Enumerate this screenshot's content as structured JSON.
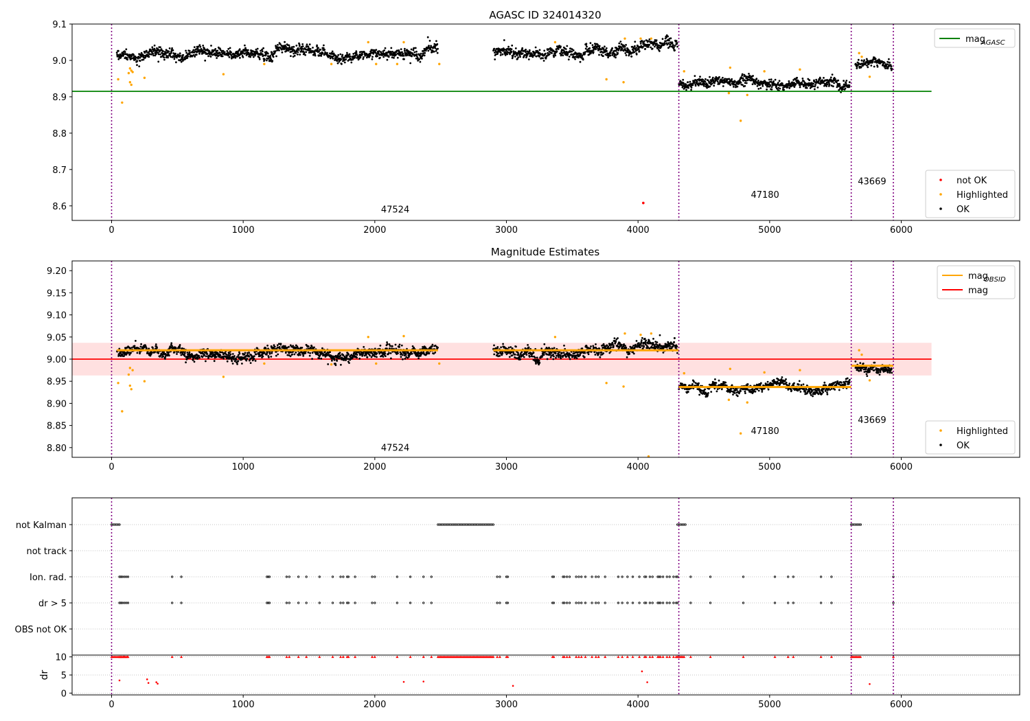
{
  "chart_data": [
    {
      "type": "scatter",
      "title": "AGASC ID 324014320",
      "ylim": [
        8.56,
        9.1
      ],
      "xlim": [
        -300,
        6900
      ],
      "xticks": [
        0,
        1000,
        2000,
        3000,
        4000,
        5000,
        6000
      ],
      "yticks": [
        8.6,
        8.7,
        8.8,
        8.9,
        9.0,
        9.1
      ],
      "grid": false,
      "segments": [
        {
          "x0": 40,
          "x1": 2480,
          "level": 9.02,
          "noise": 0.012
        },
        {
          "x0": 2900,
          "x1": 3600,
          "level": 9.022,
          "noise": 0.012
        },
        {
          "x0": 3600,
          "x1": 4300,
          "level": 9.032,
          "noise": 0.013
        },
        {
          "x0": 4310,
          "x1": 5610,
          "level": 8.937,
          "noise": 0.011
        },
        {
          "x0": 5650,
          "x1": 5930,
          "level": 8.985,
          "noise": 0.01
        }
      ],
      "highlighted_points": [
        [
          50,
          8.948
        ],
        [
          80,
          8.884
        ],
        [
          130,
          8.965
        ],
        [
          140,
          8.978
        ],
        [
          150,
          8.972
        ],
        [
          140,
          8.94
        ],
        [
          150,
          8.933
        ],
        [
          160,
          8.968
        ],
        [
          250,
          8.952
        ],
        [
          850,
          8.962
        ],
        [
          1160,
          8.99
        ],
        [
          1670,
          8.99
        ],
        [
          1950,
          9.05
        ],
        [
          2010,
          8.99
        ],
        [
          2170,
          8.99
        ],
        [
          2220,
          9.05
        ],
        [
          2490,
          8.99
        ],
        [
          3370,
          9.05
        ],
        [
          3760,
          8.948
        ],
        [
          3890,
          8.94
        ],
        [
          3900,
          9.06
        ],
        [
          4020,
          9.06
        ],
        [
          4100,
          9.06
        ],
        [
          4350,
          8.97
        ],
        [
          4700,
          8.98
        ],
        [
          4690,
          8.91
        ],
        [
          4780,
          8.834
        ],
        [
          4830,
          8.905
        ],
        [
          4960,
          8.97
        ],
        [
          5230,
          8.975
        ],
        [
          5680,
          9.02
        ],
        [
          5700,
          9.01
        ],
        [
          5760,
          8.955
        ]
      ],
      "not_ok_points": [
        [
          4040,
          8.608
        ]
      ],
      "hline": {
        "name": "mag_AGASC",
        "value": 8.915,
        "x0": -300,
        "x1": 6230,
        "color": "#008000"
      },
      "vlines": [
        0,
        4310,
        5620,
        5940
      ],
      "annotations": [
        {
          "text": "47524",
          "x": 2155,
          "y": 8.582
        },
        {
          "text": "47180",
          "x": 4965,
          "y": 8.622
        },
        {
          "text": "43669",
          "x": 5778,
          "y": 8.659
        }
      ],
      "legend_top": {
        "position": "top-right",
        "entries": [
          {
            "label": "mag",
            "sub": "AGASC",
            "color": "#008000"
          }
        ]
      },
      "legend_bottom": {
        "position": "bottom-right",
        "entries": [
          {
            "label": "not OK",
            "color": "#ff0000"
          },
          {
            "label": "Highlighted",
            "color": "#ffa500"
          },
          {
            "label": "OK",
            "color": "#000000"
          }
        ]
      }
    },
    {
      "type": "scatter",
      "title": "Magnitude Estimates",
      "ylim": [
        8.778,
        9.222
      ],
      "xlim": [
        -300,
        6900
      ],
      "xticks": [
        0,
        1000,
        2000,
        3000,
        4000,
        5000,
        6000
      ],
      "yticks": [
        8.8,
        8.85,
        8.9,
        8.95,
        9.0,
        9.05,
        9.1,
        9.15,
        9.2
      ],
      "grid": false,
      "segments": [
        {
          "x0": 40,
          "x1": 2480,
          "level": 9.018,
          "noise": 0.01
        },
        {
          "x0": 2900,
          "x1": 3600,
          "level": 9.02,
          "noise": 0.01
        },
        {
          "x0": 3600,
          "x1": 4300,
          "level": 9.028,
          "noise": 0.011
        },
        {
          "x0": 4310,
          "x1": 5610,
          "level": 8.935,
          "noise": 0.009
        },
        {
          "x0": 5650,
          "x1": 5930,
          "level": 8.983,
          "noise": 0.008
        }
      ],
      "highlighted_points": [
        [
          50,
          8.946
        ],
        [
          80,
          8.882
        ],
        [
          130,
          8.965
        ],
        [
          140,
          8.98
        ],
        [
          140,
          8.94
        ],
        [
          150,
          8.932
        ],
        [
          160,
          8.975
        ],
        [
          250,
          8.95
        ],
        [
          850,
          8.96
        ],
        [
          1160,
          8.99
        ],
        [
          1670,
          8.988
        ],
        [
          1950,
          9.05
        ],
        [
          2010,
          8.99
        ],
        [
          2220,
          9.052
        ],
        [
          2490,
          8.99
        ],
        [
          3370,
          9.05
        ],
        [
          3760,
          8.946
        ],
        [
          3890,
          8.938
        ],
        [
          3900,
          9.058
        ],
        [
          4020,
          9.055
        ],
        [
          4100,
          9.058
        ],
        [
          4350,
          8.968
        ],
        [
          4700,
          8.978
        ],
        [
          4690,
          8.908
        ],
        [
          4780,
          8.832
        ],
        [
          4830,
          8.902
        ],
        [
          4960,
          8.97
        ],
        [
          5230,
          8.975
        ],
        [
          5680,
          9.02
        ],
        [
          5700,
          9.01
        ],
        [
          5760,
          8.952
        ],
        [
          4080,
          8.78
        ]
      ],
      "obsid_mag": [
        {
          "x0": 40,
          "x1": 2480,
          "value": 9.02
        },
        {
          "x0": 2900,
          "x1": 4310,
          "value": 9.02
        },
        {
          "x0": 4310,
          "x1": 5620,
          "value": 8.937
        },
        {
          "x0": 5620,
          "x1": 5940,
          "value": 8.985
        }
      ],
      "mag_line": {
        "value": 9.0,
        "x0": -300,
        "x1": 6230,
        "band": [
          8.963,
          9.037
        ],
        "color": "#ff0000"
      },
      "vlines": [
        0,
        4310,
        5620,
        5940
      ],
      "annotations": [
        {
          "text": "47524",
          "x": 2155,
          "y": 8.793
        },
        {
          "text": "47180",
          "x": 4965,
          "y": 8.831
        },
        {
          "text": "43669",
          "x": 5778,
          "y": 8.856
        }
      ],
      "legend_top": {
        "position": "top-right",
        "entries": [
          {
            "label": "mag",
            "sub": "OBSID",
            "color": "#ffa500"
          },
          {
            "label": "mag",
            "sub": "",
            "color": "#ff0000"
          }
        ]
      },
      "legend_bottom": {
        "position": "bottom-right",
        "entries": [
          {
            "label": "Highlighted",
            "color": "#ffa500"
          },
          {
            "label": "OK",
            "color": "#000000"
          }
        ]
      }
    },
    {
      "type": "scatter",
      "title": "",
      "xlim": [
        -300,
        6900
      ],
      "xticks": [
        0,
        1000,
        2000,
        3000,
        4000,
        5000,
        6000
      ],
      "flag_rows": [
        "not Kalman",
        "not track",
        "Ion. rad.",
        "dr > 5",
        "OBS not OK"
      ],
      "grid": true,
      "flags": {
        "not Kalman": [
          [
            0,
            60
          ],
          [
            2480,
            2900
          ],
          [
            4300,
            4360
          ],
          [
            5620,
            5700
          ]
        ],
        "not track": [],
        "Ion. rad.": [
          60,
          70,
          80,
          95,
          110,
          125,
          460,
          530,
          1180,
          1190,
          1200,
          1330,
          1350,
          1420,
          1480,
          1580,
          1680,
          1740,
          1760,
          1790,
          1800,
          1850,
          1980,
          2000,
          2170,
          2270,
          2370,
          2430,
          2930,
          2950,
          3000,
          3010,
          3350,
          3360,
          3430,
          3440,
          3460,
          3480,
          3530,
          3550,
          3570,
          3600,
          3650,
          3680,
          3700,
          3750,
          3850,
          3880,
          3920,
          3960,
          4010,
          4050,
          4060,
          4090,
          4110,
          4150,
          4160,
          4170,
          4190,
          4220,
          4240,
          4270,
          4290,
          4300,
          4400,
          4550,
          4800,
          5040,
          5140,
          5180,
          5390,
          5470,
          5940
        ],
        "dr > 5": [
          60,
          70,
          80,
          95,
          110,
          125,
          460,
          530,
          1180,
          1190,
          1200,
          1330,
          1350,
          1420,
          1480,
          1580,
          1680,
          1740,
          1760,
          1790,
          1800,
          1850,
          1980,
          2000,
          2170,
          2270,
          2370,
          2430,
          2930,
          2950,
          3000,
          3010,
          3350,
          3360,
          3430,
          3440,
          3460,
          3480,
          3530,
          3550,
          3570,
          3600,
          3650,
          3680,
          3700,
          3750,
          3850,
          3880,
          3920,
          3960,
          4010,
          4050,
          4060,
          4090,
          4110,
          4150,
          4160,
          4170,
          4190,
          4220,
          4240,
          4270,
          4290,
          4300,
          4400,
          4550,
          4800,
          5040,
          5140,
          5180,
          5390,
          5470,
          5940
        ],
        "OBS not OK": []
      },
      "vlines": [
        0,
        4310,
        5620,
        5940
      ]
    },
    {
      "type": "scatter",
      "ylabel": "dr",
      "xlim": [
        -300,
        6900
      ],
      "ylim": [
        -0.5,
        10.5
      ],
      "yticks": [
        0,
        5,
        10
      ],
      "xticks": [
        0,
        1000,
        2000,
        3000,
        4000,
        5000,
        6000
      ],
      "grid": true,
      "dr_segments": [
        [
          0,
          2480
        ],
        [
          2900,
          4310
        ],
        [
          4320,
          5620
        ],
        [
          5650,
          5940
        ]
      ],
      "dr_outliers": [
        [
          60,
          3.5
        ],
        [
          270,
          3.8
        ],
        [
          280,
          2.8
        ],
        [
          340,
          3.0
        ],
        [
          350,
          2.6
        ],
        [
          2220,
          3.1
        ],
        [
          2370,
          3.2
        ],
        [
          4030,
          6.0
        ],
        [
          4070,
          3.0
        ],
        [
          3050,
          2.0
        ],
        [
          5760,
          2.5
        ]
      ],
      "dr_clipped_x": [
        [
          0,
          120
        ],
        [
          2480,
          2900
        ],
        [
          4290,
          4350
        ],
        [
          5620,
          5690
        ]
      ],
      "vlines": [
        0,
        4310,
        5620,
        5940
      ]
    }
  ]
}
